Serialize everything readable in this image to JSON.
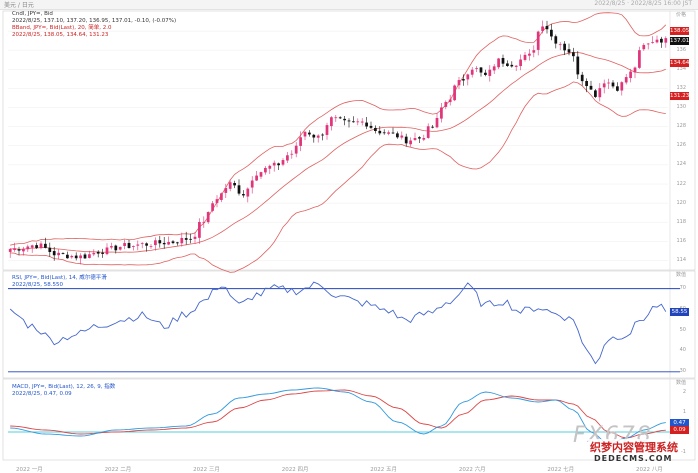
{
  "header": {
    "left": "美元 / 日元",
    "right": "2022/8/25 · 2022/8/25 16:00 JST"
  },
  "legends": {
    "price": [
      {
        "text": "Cndl, JPY=, Bid",
        "color": "dk"
      },
      {
        "text": "2022/8/25, 137.10, 137.20, 136.95, 137.01, -0.10, (-0.07%)",
        "color": "dk"
      },
      {
        "text": "BBand, JPY=, Bid(Last), 20, 简单, 2.0",
        "color": "rd"
      },
      {
        "text": "2022/8/25, 138.05, 134.64, 131.23",
        "color": "rd"
      }
    ],
    "rsi": [
      {
        "text": "RSI, JPY=, Bid(Last), 14, 威尔德平滑",
        "color": "bl"
      },
      {
        "text": "2022/8/25, 58.550",
        "color": "bl"
      }
    ],
    "macd": [
      {
        "text": "MACD, JPY=, Bid(Last), 12, 26, 9, 指数",
        "color": "bl"
      },
      {
        "text": "2022/8/25, 0.47, 0.09",
        "color": "bl"
      }
    ]
  },
  "price_tags": [
    {
      "text": "138.05",
      "value": 138.05,
      "color": "#d42020"
    },
    {
      "text": "137.01",
      "value": 137.01,
      "color": "#111111"
    },
    {
      "text": "134.64",
      "value": 134.64,
      "color": "#d42020"
    },
    {
      "text": "131.23",
      "value": 131.23,
      "color": "#d42020"
    }
  ],
  "y_axis": {
    "unit": "价格",
    "ticks": [
      "138",
      "136",
      "134",
      "132",
      "130",
      "128",
      "126",
      "124",
      "122",
      "120",
      "118",
      "116",
      "114"
    ]
  },
  "rsi_axis": {
    "unit": "数值",
    "ticks": [
      "70",
      "60",
      "50",
      "40",
      "30"
    ]
  },
  "macd_axis": {
    "unit": "数值",
    "ticks": [
      "2",
      "1",
      "0",
      "-1"
    ]
  },
  "macd_tags": [
    {
      "text": "0.47",
      "value": 0.47,
      "color": "#2255cc"
    },
    {
      "text": "0.09",
      "value": 0.09,
      "color": "#d42020"
    }
  ],
  "x_axis": {
    "labels": [
      "2022 一月",
      "2022 二月",
      "2022 三月",
      "2022 四月",
      "2022 五月",
      "2022 六月",
      "2022 七月",
      "2022 八月"
    ]
  },
  "watermark": {
    "brand": "FX678",
    "cn": "织梦内容管理系统",
    "site": "DEDECMS.COM"
  },
  "colors": {
    "up": "#e0357a",
    "down": "#111111",
    "band": "#e06060",
    "rsi": "#4466cc",
    "macd": "#3399dd",
    "signal": "#dd4444",
    "levels": "#2244bb"
  },
  "chart_data": [
    {
      "type": "candlestick",
      "title": "Cndl, JPY=, Bid",
      "ylim": [
        113,
        140
      ],
      "close_anchors": [
        [
          0,
          115.2
        ],
        [
          6,
          115.6
        ],
        [
          11,
          114.6
        ],
        [
          16,
          114.4
        ],
        [
          21,
          115.0
        ],
        [
          26,
          115.5
        ],
        [
          31,
          115.7
        ],
        [
          36,
          115.9
        ],
        [
          41,
          116.3
        ],
        [
          44,
          118.2
        ],
        [
          47,
          120.6
        ],
        [
          50,
          122.0
        ],
        [
          53,
          121.0
        ],
        [
          56,
          123.2
        ],
        [
          60,
          123.9
        ],
        [
          64,
          125.2
        ],
        [
          67,
          127.5
        ],
        [
          70,
          126.9
        ],
        [
          73,
          128.8
        ],
        [
          77,
          128.3
        ],
        [
          80,
          128.5
        ],
        [
          84,
          127.5
        ],
        [
          87,
          127.2
        ],
        [
          90,
          126.6
        ],
        [
          93,
          126.8
        ],
        [
          96,
          128.0
        ],
        [
          99,
          130.6
        ],
        [
          102,
          132.6
        ],
        [
          105,
          134.2
        ],
        [
          108,
          133.3
        ],
        [
          111,
          134.9
        ],
        [
          114,
          134.6
        ],
        [
          118,
          135.4
        ],
        [
          121,
          138.8
        ],
        [
          124,
          137.0
        ],
        [
          127,
          135.9
        ],
        [
          130,
          133.0
        ],
        [
          133,
          131.4
        ],
        [
          135,
          132.8
        ],
        [
          138,
          132.1
        ],
        [
          141,
          133.6
        ],
        [
          144,
          136.4
        ],
        [
          147,
          137.2
        ],
        [
          149,
          137.0
        ]
      ],
      "bollinger": {
        "period": 20,
        "mult": 2.0,
        "last": {
          "upper": 138.05,
          "mid": 134.64,
          "lower": 131.23
        }
      }
    },
    {
      "type": "line",
      "title": "RSI, JPY=, Bid(Last), 14",
      "ylim": [
        27,
        78
      ],
      "levels": [
        70,
        30
      ],
      "last": 58.55,
      "anchors": [
        [
          0,
          59
        ],
        [
          5,
          52
        ],
        [
          10,
          45
        ],
        [
          15,
          48
        ],
        [
          20,
          52
        ],
        [
          25,
          55
        ],
        [
          30,
          57
        ],
        [
          35,
          52
        ],
        [
          40,
          58
        ],
        [
          44,
          64
        ],
        [
          48,
          72
        ],
        [
          52,
          62
        ],
        [
          56,
          67
        ],
        [
          60,
          70
        ],
        [
          65,
          69
        ],
        [
          70,
          72
        ],
        [
          75,
          66
        ],
        [
          80,
          63
        ],
        [
          85,
          60
        ],
        [
          90,
          55
        ],
        [
          95,
          58
        ],
        [
          100,
          64
        ],
        [
          104,
          71
        ],
        [
          108,
          62
        ],
        [
          112,
          64
        ],
        [
          116,
          59
        ],
        [
          120,
          61
        ],
        [
          124,
          58
        ],
        [
          128,
          55
        ],
        [
          131,
          40
        ],
        [
          133,
          35
        ],
        [
          136,
          46
        ],
        [
          140,
          48
        ],
        [
          144,
          56
        ],
        [
          147,
          62
        ],
        [
          149,
          59
        ]
      ]
    },
    {
      "type": "line",
      "title": "MACD, JPY=, Bid(Last), 12, 26, 9",
      "ylim": [
        -1.4,
        2.6
      ],
      "zero_line": 0,
      "last": {
        "macd": 0.47,
        "signal": 0.09
      },
      "macd_anchors": [
        [
          0,
          0.2
        ],
        [
          8,
          -0.1
        ],
        [
          16,
          -0.2
        ],
        [
          24,
          0.1
        ],
        [
          32,
          0.2
        ],
        [
          40,
          0.3
        ],
        [
          46,
          0.9
        ],
        [
          52,
          1.7
        ],
        [
          58,
          1.9
        ],
        [
          64,
          2.1
        ],
        [
          70,
          2.2
        ],
        [
          76,
          2.0
        ],
        [
          82,
          1.5
        ],
        [
          88,
          0.5
        ],
        [
          94,
          -0.1
        ],
        [
          98,
          0.3
        ],
        [
          103,
          1.5
        ],
        [
          108,
          2.0
        ],
        [
          114,
          1.7
        ],
        [
          120,
          1.5
        ],
        [
          124,
          1.6
        ],
        [
          128,
          1.1
        ],
        [
          132,
          0.0
        ],
        [
          136,
          -0.6
        ],
        [
          140,
          -0.3
        ],
        [
          144,
          0.1
        ],
        [
          149,
          0.47
        ]
      ],
      "signal_anchors": [
        [
          0,
          0.3
        ],
        [
          8,
          0.1
        ],
        [
          16,
          -0.1
        ],
        [
          24,
          0.0
        ],
        [
          32,
          0.1
        ],
        [
          40,
          0.2
        ],
        [
          46,
          0.5
        ],
        [
          52,
          1.2
        ],
        [
          58,
          1.6
        ],
        [
          64,
          1.9
        ],
        [
          70,
          2.05
        ],
        [
          76,
          2.1
        ],
        [
          82,
          1.8
        ],
        [
          88,
          1.2
        ],
        [
          94,
          0.4
        ],
        [
          98,
          0.2
        ],
        [
          103,
          0.9
        ],
        [
          108,
          1.6
        ],
        [
          114,
          1.8
        ],
        [
          120,
          1.6
        ],
        [
          124,
          1.6
        ],
        [
          128,
          1.4
        ],
        [
          132,
          0.7
        ],
        [
          136,
          0.0
        ],
        [
          140,
          -0.3
        ],
        [
          144,
          -0.1
        ],
        [
          149,
          0.09
        ]
      ]
    }
  ]
}
